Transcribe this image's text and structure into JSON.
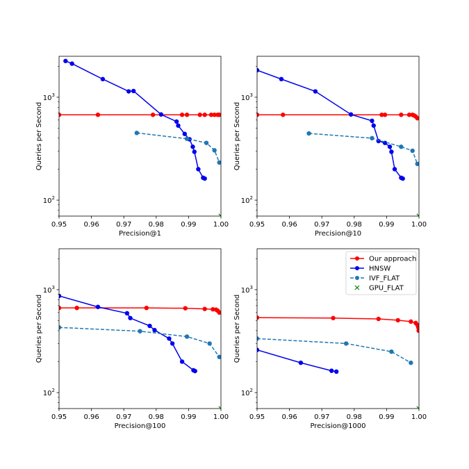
{
  "chart_data": [
    {
      "type": "line",
      "title": "",
      "xlabel": "Precision@1",
      "ylabel": "Queries per Second",
      "xlim": [
        0.95,
        1.0
      ],
      "ylim": [
        70,
        2500
      ],
      "yscale": "log",
      "xticks": [
        "0.95",
        "0.96",
        "0.97",
        "0.98",
        "0.99",
        "1.00"
      ],
      "yticks": [
        {
          "value": 100,
          "base": "10",
          "exp": "2"
        },
        {
          "value": 1000,
          "base": "10",
          "exp": "3"
        }
      ],
      "series": [
        {
          "name": "Our approach",
          "color": "#ff0000",
          "style": "solid",
          "x": [
            0.95,
            0.962,
            0.979,
            0.988,
            0.9895,
            0.9935,
            0.995,
            0.997,
            0.998,
            0.999,
            0.9995
          ],
          "y": [
            675,
            675,
            675,
            675,
            675,
            675,
            675,
            675,
            675,
            675,
            675
          ]
        },
        {
          "name": "HNSW",
          "color": "#0000ee",
          "style": "solid",
          "x": [
            0.952,
            0.954,
            0.9635,
            0.9715,
            0.973,
            0.9815,
            0.9863,
            0.9868,
            0.9888,
            0.9903,
            0.9913,
            0.9918,
            0.993,
            0.9945,
            0.995
          ],
          "y": [
            2250,
            2120,
            1500,
            1140,
            1150,
            680,
            580,
            530,
            440,
            390,
            330,
            295,
            200,
            165,
            162
          ]
        },
        {
          "name": "IVF_FLAT",
          "color": "#1f77b4",
          "style": "dashed",
          "x": [
            0.974,
            0.9895,
            0.9955,
            0.998,
            0.9995
          ],
          "y": [
            450,
            395,
            360,
            305,
            232
          ]
        },
        {
          "name": "GPU_FLAT",
          "color": "#008000",
          "style": "cross",
          "x": [
            1.0
          ],
          "y": [
            70
          ]
        }
      ]
    },
    {
      "type": "line",
      "title": "",
      "xlabel": "Precision@10",
      "ylabel": "Queries per Second",
      "xlim": [
        0.95,
        1.0
      ],
      "ylim": [
        70,
        2500
      ],
      "yscale": "log",
      "xticks": [
        "0.95",
        "0.96",
        "0.97",
        "0.98",
        "0.99",
        "1.00"
      ],
      "yticks": [
        {
          "value": 100,
          "base": "10",
          "exp": "2"
        },
        {
          "value": 1000,
          "base": "10",
          "exp": "3"
        }
      ],
      "series": [
        {
          "name": "Our approach",
          "color": "#ff0000",
          "style": "solid",
          "x": [
            0.95,
            0.958,
            0.9885,
            0.9895,
            0.9945,
            0.997,
            0.998,
            0.9985,
            0.999,
            0.9995
          ],
          "y": [
            675,
            675,
            675,
            675,
            675,
            675,
            675,
            665,
            650,
            625
          ]
        },
        {
          "name": "HNSW",
          "color": "#0000ee",
          "style": "solid",
          "x": [
            0.95,
            0.9575,
            0.968,
            0.979,
            0.9855,
            0.986,
            0.9875,
            0.9895,
            0.991,
            0.9915,
            0.9925,
            0.9945,
            0.995
          ],
          "y": [
            1830,
            1500,
            1140,
            680,
            590,
            530,
            375,
            360,
            330,
            295,
            200,
            165,
            162
          ]
        },
        {
          "name": "IVF_FLAT",
          "color": "#1f77b4",
          "style": "dashed",
          "x": [
            0.966,
            0.9855,
            0.9945,
            0.998,
            0.9995
          ],
          "y": [
            445,
            400,
            330,
            302,
            225
          ]
        },
        {
          "name": "GPU_FLAT",
          "color": "#008000",
          "style": "cross",
          "x": [
            1.0
          ],
          "y": [
            70
          ]
        }
      ]
    },
    {
      "type": "line",
      "title": "",
      "xlabel": "Precision@100",
      "ylabel": "Queries per Second",
      "xlim": [
        0.95,
        1.0
      ],
      "ylim": [
        70,
        2500
      ],
      "yscale": "log",
      "xticks": [
        "0.95",
        "0.96",
        "0.97",
        "0.98",
        "0.99",
        "1.00"
      ],
      "yticks": [
        {
          "value": 100,
          "base": "10",
          "exp": "2"
        },
        {
          "value": 1000,
          "base": "10",
          "exp": "3"
        }
      ],
      "series": [
        {
          "name": "Our approach",
          "color": "#ff0000",
          "style": "solid",
          "x": [
            0.95,
            0.9555,
            0.977,
            0.989,
            0.995,
            0.9975,
            0.9985,
            0.999,
            0.9995
          ],
          "y": [
            665,
            665,
            665,
            660,
            650,
            645,
            640,
            625,
            600
          ]
        },
        {
          "name": "HNSW",
          "color": "#0000ee",
          "style": "solid",
          "x": [
            0.95,
            0.962,
            0.971,
            0.972,
            0.978,
            0.9795,
            0.984,
            0.985,
            0.988,
            0.9915,
            0.992
          ],
          "y": [
            870,
            680,
            590,
            530,
            445,
            405,
            335,
            300,
            200,
            165,
            162
          ]
        },
        {
          "name": "IVF_FLAT",
          "color": "#1f77b4",
          "style": "dashed",
          "x": [
            0.95,
            0.975,
            0.9895,
            0.9965,
            0.9995
          ],
          "y": [
            430,
            395,
            350,
            300,
            222
          ]
        },
        {
          "name": "GPU_FLAT",
          "color": "#008000",
          "style": "cross",
          "x": [
            1.0
          ],
          "y": [
            70
          ]
        }
      ]
    },
    {
      "type": "line",
      "title": "",
      "xlabel": "Precision@1000",
      "ylabel": "Queries per Second",
      "xlim": [
        0.95,
        1.0
      ],
      "ylim": [
        70,
        2500
      ],
      "yscale": "log",
      "xticks": [
        "0.95",
        "0.96",
        "0.97",
        "0.98",
        "0.99",
        "1.00"
      ],
      "yticks": [
        {
          "value": 100,
          "base": "10",
          "exp": "2"
        },
        {
          "value": 1000,
          "base": "10",
          "exp": "3"
        }
      ],
      "legend": {
        "position": "top-right",
        "entries": [
          "Our approach",
          "HNSW",
          "IVF_FLAT",
          "GPU_FLAT"
        ]
      },
      "series": [
        {
          "name": "Our approach",
          "color": "#ff0000",
          "style": "solid",
          "x": [
            0.95,
            0.9735,
            0.9875,
            0.9935,
            0.9975,
            0.999,
            0.9995,
            0.9998,
            0.9999
          ],
          "y": [
            535,
            530,
            520,
            505,
            490,
            475,
            455,
            430,
            400
          ]
        },
        {
          "name": "HNSW",
          "color": "#0000ee",
          "style": "solid",
          "x": [
            0.95,
            0.9635,
            0.973,
            0.9745
          ],
          "y": [
            260,
            195,
            163,
            160
          ]
        },
        {
          "name": "IVF_FLAT",
          "color": "#1f77b4",
          "style": "dashed",
          "x": [
            0.95,
            0.9775,
            0.9915,
            0.9975
          ],
          "y": [
            335,
            300,
            250,
            195
          ]
        },
        {
          "name": "GPU_FLAT",
          "color": "#008000",
          "style": "cross",
          "x": [
            1.0
          ],
          "y": [
            70
          ]
        }
      ]
    }
  ]
}
